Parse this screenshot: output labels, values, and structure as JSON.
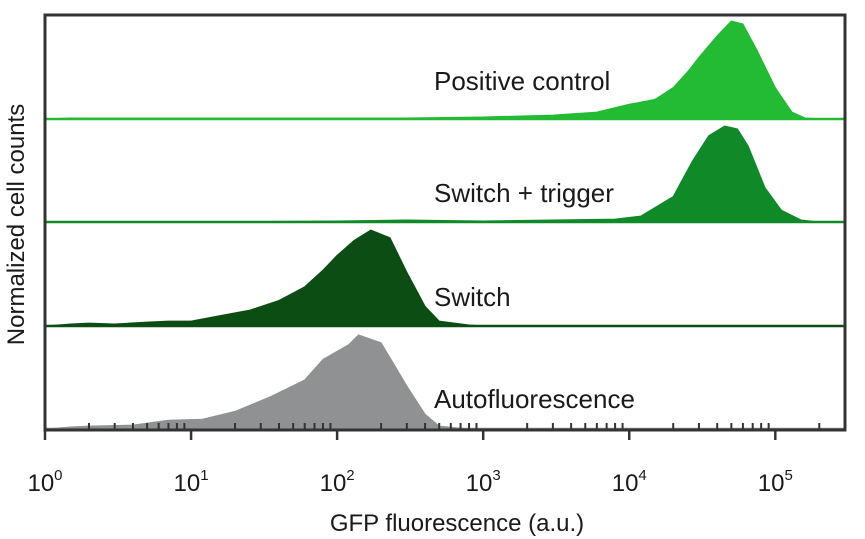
{
  "chart_data": {
    "type": "area",
    "title": "",
    "xlabel": "GFP fluorescence (a.u.)",
    "ylabel": "Normalized cell counts",
    "x_scale": "log",
    "xlim": [
      1,
      300000
    ],
    "x_ticks": [
      {
        "base": "10",
        "exp": "0"
      },
      {
        "base": "10",
        "exp": "1"
      },
      {
        "base": "10",
        "exp": "2"
      },
      {
        "base": "10",
        "exp": "3"
      },
      {
        "base": "10",
        "exp": "4"
      },
      {
        "base": "10",
        "exp": "5"
      }
    ],
    "grid": false,
    "legend": "none",
    "series": [
      {
        "name": "Positive control",
        "color": "#22bb33",
        "points": [
          [
            1,
            0.0
          ],
          [
            1.5,
            0.01
          ],
          [
            3,
            0.01
          ],
          [
            10,
            0.01
          ],
          [
            30,
            0.01
          ],
          [
            100,
            0.01
          ],
          [
            300,
            0.01
          ],
          [
            1000,
            0.02
          ],
          [
            3000,
            0.04
          ],
          [
            6000,
            0.07
          ],
          [
            10000,
            0.15
          ],
          [
            15000,
            0.2
          ],
          [
            20000,
            0.32
          ],
          [
            25000,
            0.48
          ],
          [
            30000,
            0.63
          ],
          [
            40000,
            0.85
          ],
          [
            50000,
            1.0
          ],
          [
            60000,
            0.97
          ],
          [
            75000,
            0.7
          ],
          [
            100000,
            0.32
          ],
          [
            130000,
            0.07
          ],
          [
            160000,
            0.01
          ],
          [
            200000,
            0.0
          ]
        ]
      },
      {
        "name": "Switch + trigger",
        "color": "#108a28",
        "points": [
          [
            1,
            0.0
          ],
          [
            10,
            0.0
          ],
          [
            100,
            0.01
          ],
          [
            300,
            0.02
          ],
          [
            1000,
            0.01
          ],
          [
            3000,
            0.02
          ],
          [
            8000,
            0.03
          ],
          [
            12000,
            0.06
          ],
          [
            20000,
            0.26
          ],
          [
            27000,
            0.62
          ],
          [
            35000,
            0.88
          ],
          [
            45000,
            0.98
          ],
          [
            55000,
            0.95
          ],
          [
            65000,
            0.78
          ],
          [
            85000,
            0.35
          ],
          [
            110000,
            0.12
          ],
          [
            150000,
            0.02
          ],
          [
            200000,
            0.0
          ]
        ]
      },
      {
        "name": "Switch",
        "color": "#0c4d13",
        "points": [
          [
            1,
            0.0
          ],
          [
            1.5,
            0.02
          ],
          [
            2,
            0.03
          ],
          [
            3,
            0.02
          ],
          [
            5,
            0.04
          ],
          [
            7,
            0.05
          ],
          [
            10,
            0.05
          ],
          [
            15,
            0.1
          ],
          [
            25,
            0.16
          ],
          [
            40,
            0.26
          ],
          [
            60,
            0.4
          ],
          [
            80,
            0.57
          ],
          [
            100,
            0.72
          ],
          [
            130,
            0.87
          ],
          [
            170,
            0.98
          ],
          [
            230,
            0.9
          ],
          [
            300,
            0.55
          ],
          [
            400,
            0.2
          ],
          [
            500,
            0.05
          ],
          [
            800,
            0.01
          ],
          [
            1000,
            0.0
          ]
        ]
      },
      {
        "name": "Autofluorescence",
        "color": "#8f9193",
        "points": [
          [
            1,
            0.0
          ],
          [
            1.5,
            0.02
          ],
          [
            2,
            0.03
          ],
          [
            4,
            0.04
          ],
          [
            7,
            0.09
          ],
          [
            12,
            0.1
          ],
          [
            20,
            0.18
          ],
          [
            35,
            0.33
          ],
          [
            60,
            0.5
          ],
          [
            80,
            0.71
          ],
          [
            120,
            0.86
          ],
          [
            140,
            0.96
          ],
          [
            200,
            0.88
          ],
          [
            300,
            0.44
          ],
          [
            400,
            0.15
          ],
          [
            500,
            0.03
          ],
          [
            800,
            0.0
          ]
        ]
      }
    ]
  }
}
